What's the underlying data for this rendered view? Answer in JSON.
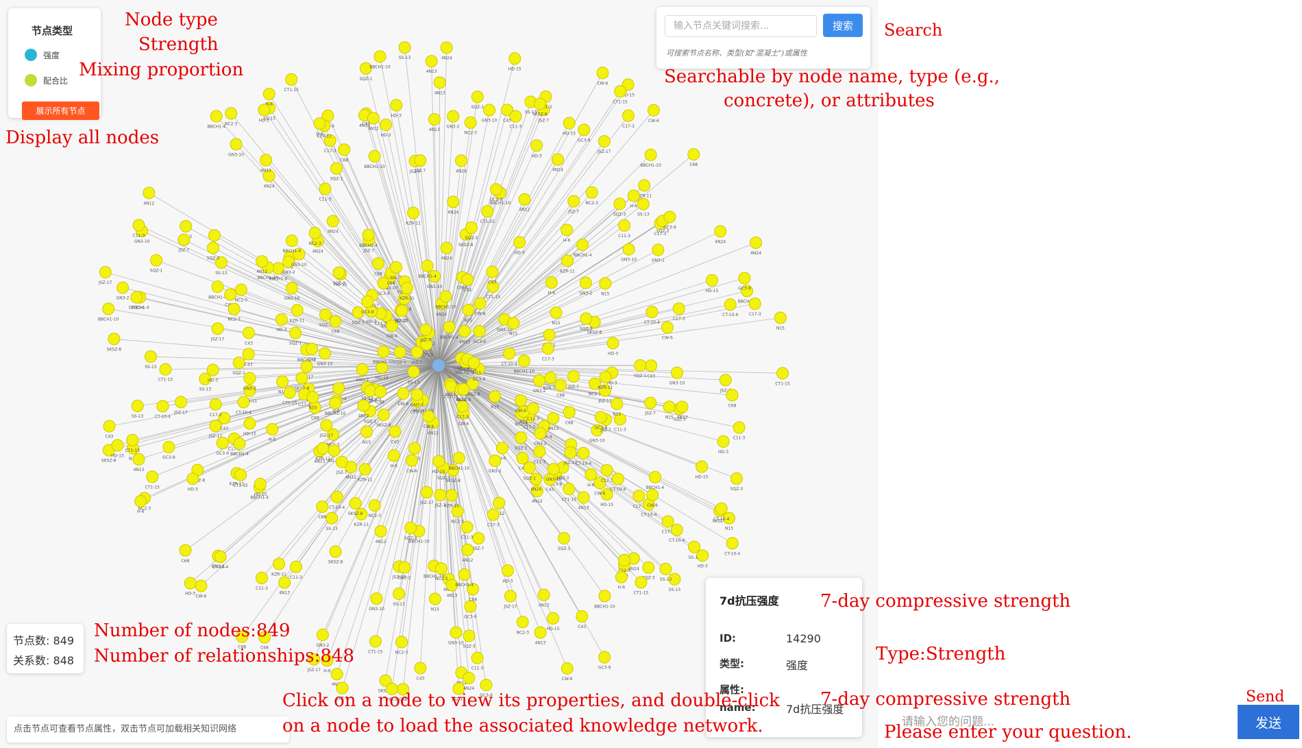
{
  "legend": {
    "title": "节点类型",
    "items": [
      {
        "label": "强度",
        "color": "#29b6d6"
      },
      {
        "label": "配合比",
        "color": "#c5dc35"
      }
    ],
    "show_all_button": "展示所有节点"
  },
  "search": {
    "placeholder": "输入节点关键词搜索...",
    "button": "搜索",
    "hint": "可搜索节点名称、类型(如\"混凝土\")或属性"
  },
  "stats": {
    "nodes": "节点数: 849",
    "relations": "关系数: 848"
  },
  "tip": "点击节点可查看节点属性，双击节点可加载相关知识网络",
  "property_panel": {
    "title": "7d抗压强度",
    "id_label": "ID:",
    "id_value": "14290",
    "type_label": "类型:",
    "type_value": "强度",
    "attr_label": "属性:",
    "name_label": "name:",
    "name_value": "7d抗压强度"
  },
  "chat": {
    "placeholder": "请输入您的问题...",
    "send": "发送"
  },
  "graph": {
    "center_color": "#7fb2e8",
    "node_color": "#f2f20f",
    "visible_labels": [
      "SS-13",
      "C11-3",
      "C17-3",
      "SKSZ-8",
      "BBCH1-4",
      "CT1-15",
      "HD-15",
      "JSZ-17",
      "GN3-10",
      "NC2-3",
      "CW-6",
      "4N24",
      "4N13",
      "SQZ-1",
      "KZR-11",
      "JSZ-7",
      "GC3-9",
      "C68",
      "HD-3",
      "BBCH1-10",
      "CT-10-4",
      "N15",
      "4N12",
      "SQZ-3",
      "H-6",
      "GN3-2",
      "C43"
    ]
  },
  "annotations": {
    "node_type": "Node type",
    "strength": "Strength",
    "mixing": "Mixing proportion",
    "display_all": "Display all nodes",
    "search": "Search",
    "search_desc_1": "Searchable by node name, type (e.g.,",
    "search_desc_2": "concrete), or attributes",
    "num_nodes": "Number of nodes:849",
    "num_rel": "Number of relationships:848",
    "click_1": "Click on a node to view its properties, and double-click",
    "click_2": "on a node to load the associated knowledge network.",
    "comp_strength_1": "7-day compressive strength",
    "type_strength": "Type:Strength",
    "comp_strength_2": "7-day compressive strength",
    "send": "Send",
    "enter_question": "Please enter your question."
  }
}
